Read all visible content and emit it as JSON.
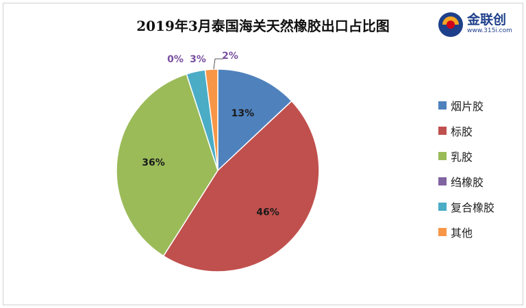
{
  "title": "2019年3月泰国海关天然橡胶出口占比图",
  "logo": {
    "name": "金联创",
    "url": "www.315i.com"
  },
  "chart_data": {
    "type": "pie",
    "title": "2019年3月泰国海关天然橡胶出口占比图",
    "legend_position": "right",
    "categories": [
      "烟片胶",
      "标胶",
      "乳胶",
      "绉橡胶",
      "复合橡胶",
      "其他"
    ],
    "values": [
      13,
      46,
      36,
      0,
      3,
      2
    ],
    "labels": [
      "13%",
      "46%",
      "36%",
      "0%",
      "3%",
      "2%"
    ],
    "colors": [
      "#4f81bd",
      "#c0504d",
      "#9bbb59",
      "#8064a2",
      "#4bacc6",
      "#f79646"
    ]
  }
}
